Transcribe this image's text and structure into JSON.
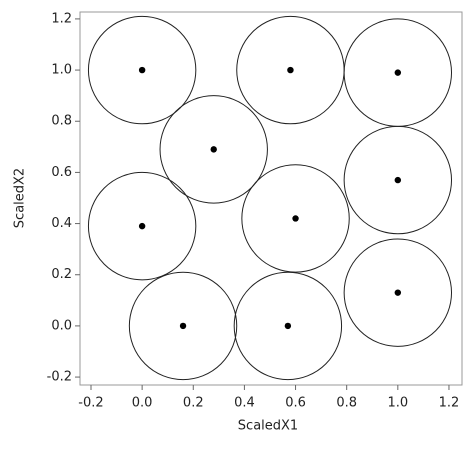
{
  "chart_data": {
    "type": "scatter",
    "xlabel": "ScaledX1",
    "ylabel": "ScaledX2",
    "x": [
      0,
      0.58,
      1,
      0.28,
      1,
      0,
      0.6,
      1,
      0.16,
      0.57
    ],
    "series": [
      {
        "color": "#000000",
        "values": [
          1,
          1,
          0.99,
          0.69,
          0.57,
          0.39,
          0.42,
          0.13,
          0,
          0
        ]
      }
    ],
    "circle_radius": 0.21,
    "circle_color": "#222222",
    "xlim": [
      -0.243,
      1.251
    ],
    "ylim": [
      -0.231,
      1.227
    ],
    "xticks": [
      -0.2,
      {
        "value": 0,
        "label": "0.0"
      },
      0.2,
      0.4,
      0.6,
      0.8,
      {
        "value": 1,
        "label": "1.0"
      },
      1.2
    ],
    "yticks": [
      -0.2,
      {
        "value": 0,
        "label": "0.0"
      },
      0.2,
      0.4,
      0.6,
      0.8,
      {
        "value": 1,
        "label": "1.0"
      },
      1.2
    ]
  }
}
